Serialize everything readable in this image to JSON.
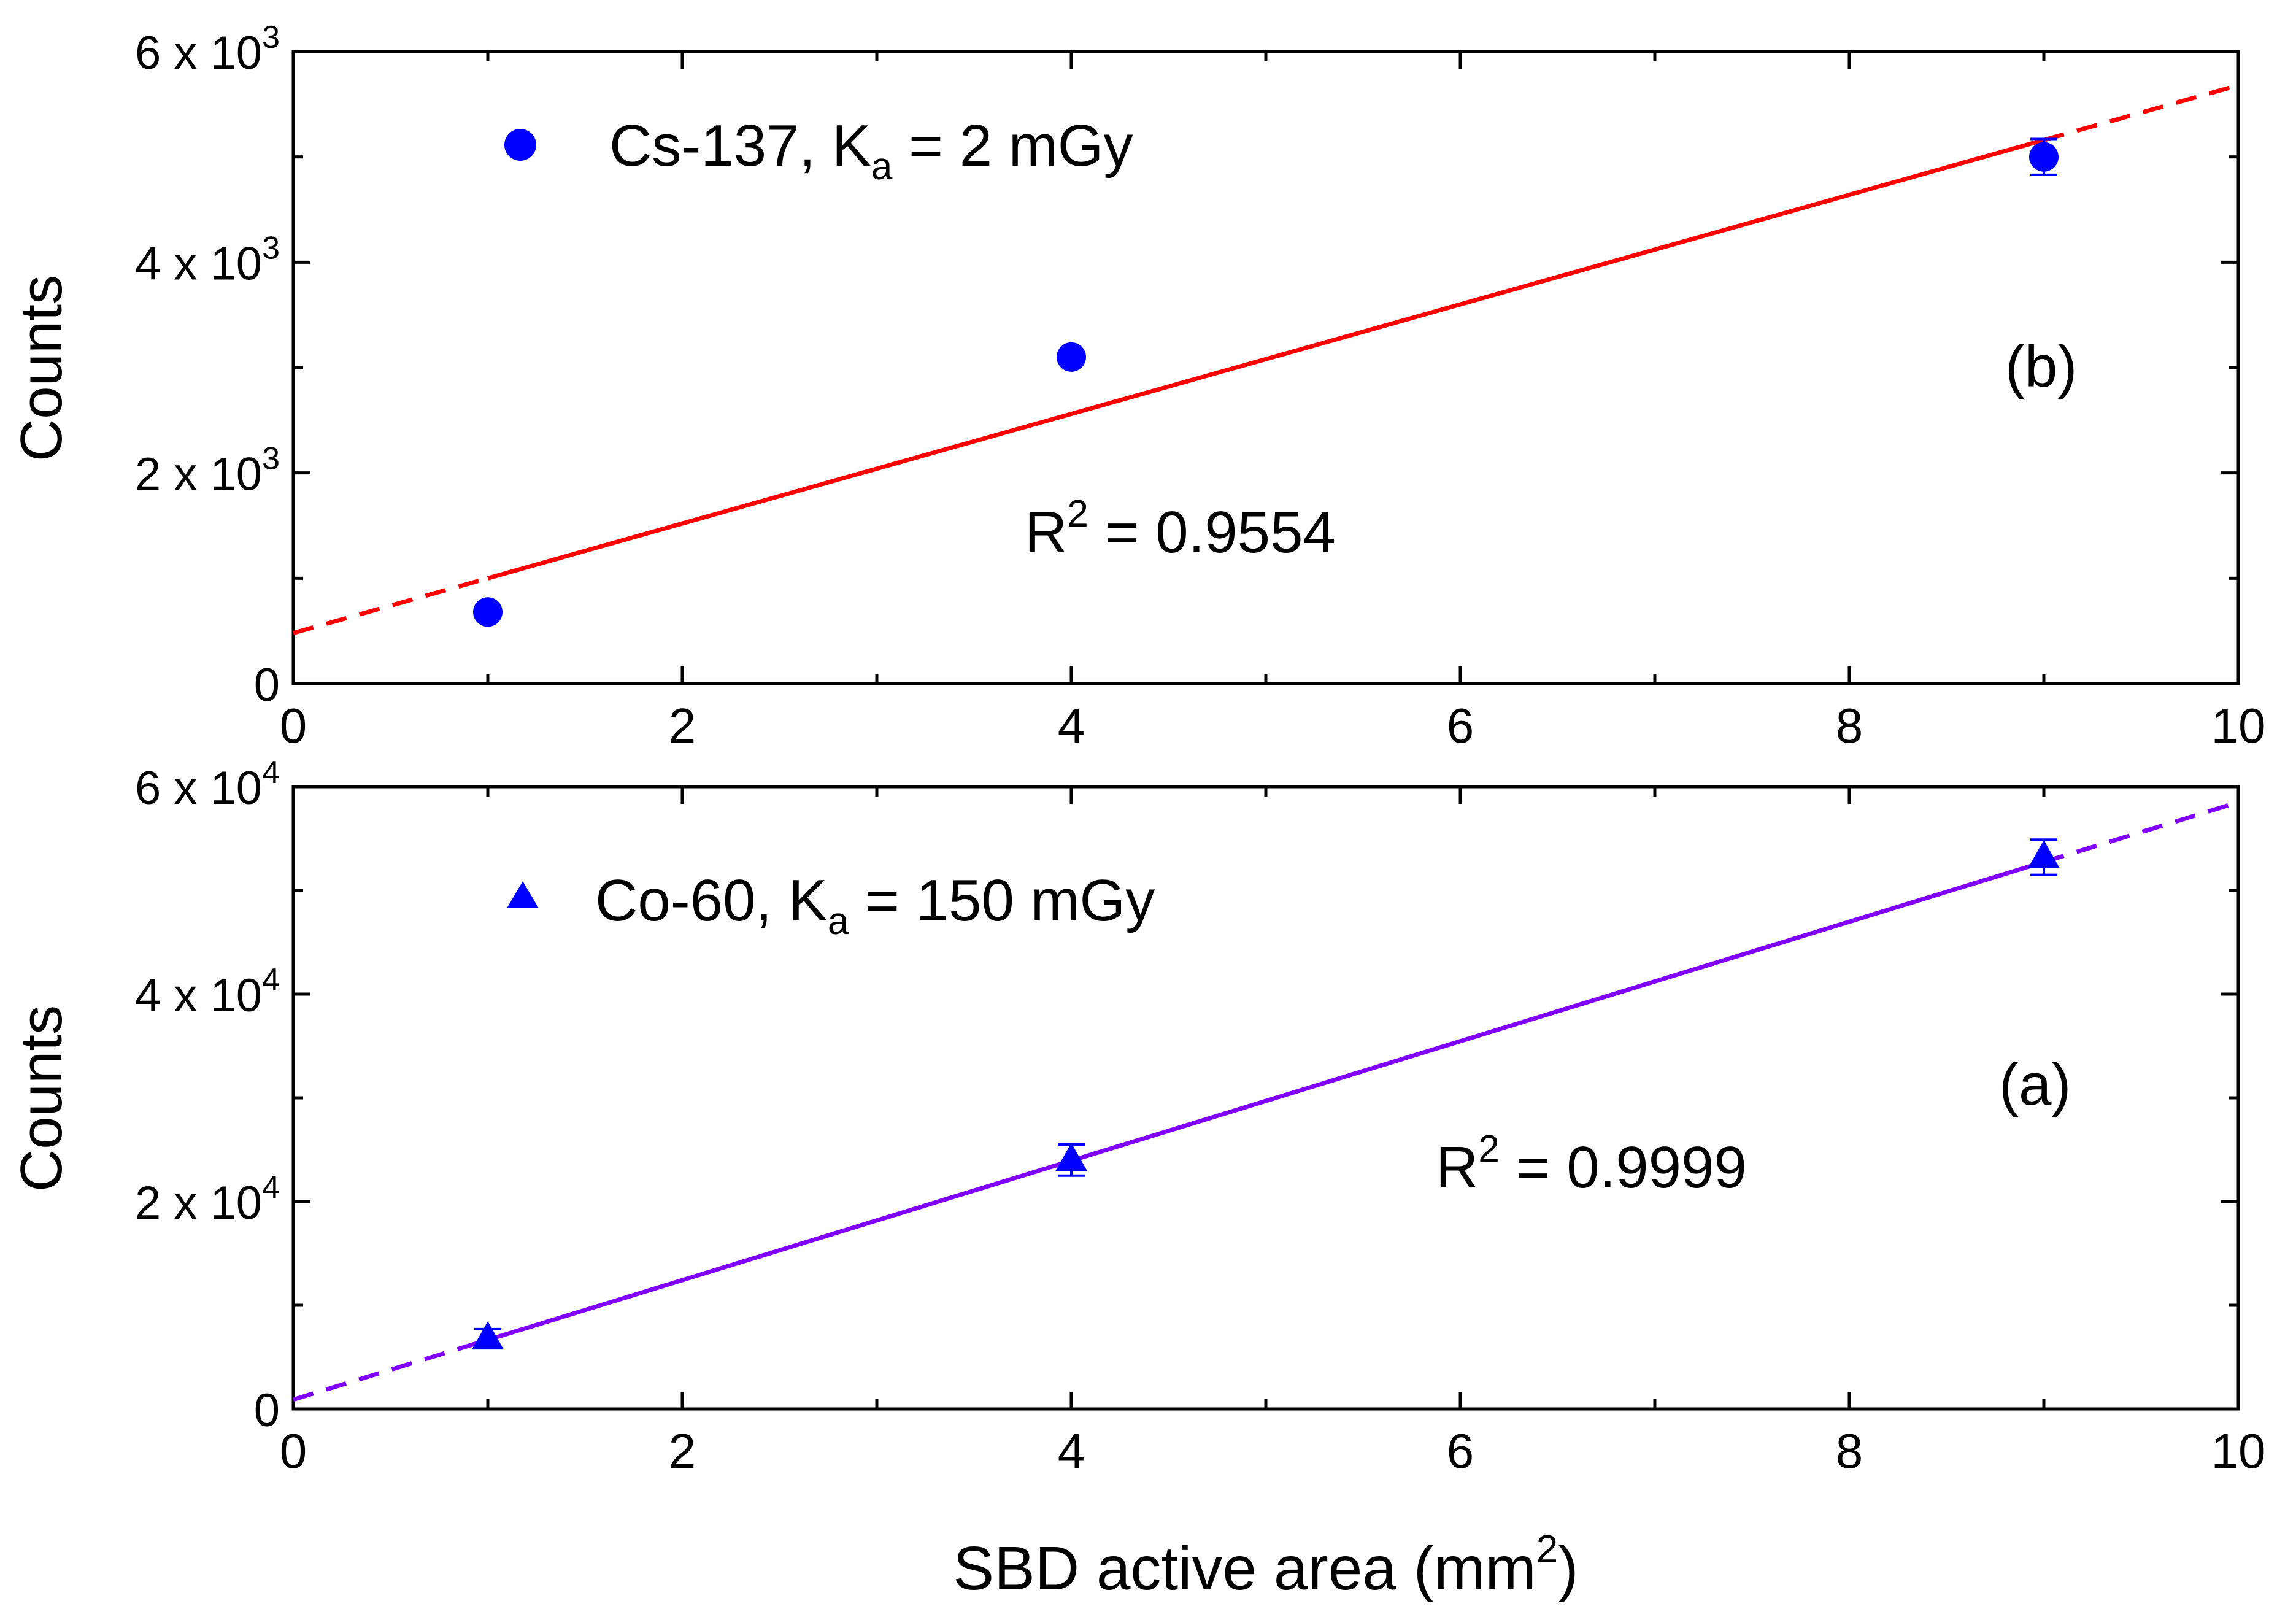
{
  "figure": {
    "xlabel": "SBD active area (mm",
    "xlabel_sup": "2",
    "xlabel_close": ")"
  },
  "chart_data": [
    {
      "type": "scatter",
      "panel_label": "(b)",
      "ylabel": "Counts",
      "xlim": [
        0,
        10
      ],
      "ylim": [
        0,
        6000
      ],
      "x_ticks": [
        0,
        2,
        4,
        6,
        8,
        10
      ],
      "x_tick_labels": [
        "0",
        "2",
        "4",
        "6",
        "8",
        "10"
      ],
      "y_ticks": [
        0,
        2000,
        4000,
        6000
      ],
      "y_tick_labels": [
        {
          "value": 0,
          "mant": "0",
          "exp": ""
        },
        {
          "value": 2000,
          "mant": "2 x 10",
          "exp": "3"
        },
        {
          "value": 4000,
          "mant": "4 x 10",
          "exp": "3"
        },
        {
          "value": 6000,
          "mant": "6 x 10",
          "exp": "3"
        }
      ],
      "y_minor_ticks": [
        1000,
        3000,
        5000
      ],
      "x_minor_ticks": [
        1,
        3,
        5,
        7,
        9
      ],
      "series": [
        {
          "name": "Cs-137",
          "legend_main": "Cs-137, K",
          "legend_sub": "a",
          "legend_tail": " = 2 mGy",
          "marker": "circle",
          "color": "#0000ff",
          "points": [
            {
              "x": 1,
              "y": 680,
              "err": 0
            },
            {
              "x": 4,
              "y": 3100,
              "err": 0
            },
            {
              "x": 9,
              "y": 5000,
              "err": 170
            }
          ]
        }
      ],
      "fit": {
        "color": "#ff0000",
        "intercept": 480,
        "slope": 520,
        "solid_range": [
          1,
          9
        ],
        "dashed_range": [
          0,
          10
        ],
        "r2_prefix": "R",
        "r2_sup": "2",
        "r2_value": " = 0.9554"
      }
    },
    {
      "type": "scatter",
      "panel_label": "(a)",
      "ylabel": "Counts",
      "xlim": [
        0,
        10
      ],
      "ylim": [
        0,
        60000
      ],
      "x_ticks": [
        0,
        2,
        4,
        6,
        8,
        10
      ],
      "x_tick_labels": [
        "0",
        "2",
        "4",
        "6",
        "8",
        "10"
      ],
      "y_ticks": [
        0,
        20000,
        40000,
        60000
      ],
      "y_tick_labels": [
        {
          "value": 0,
          "mant": "0",
          "exp": ""
        },
        {
          "value": 20000,
          "mant": "2 x 10",
          "exp": "4"
        },
        {
          "value": 40000,
          "mant": "4 x 10",
          "exp": "4"
        },
        {
          "value": 60000,
          "mant": "6 x 10",
          "exp": "4"
        }
      ],
      "y_minor_ticks": [
        10000,
        30000,
        50000
      ],
      "x_minor_ticks": [
        1,
        3,
        5,
        7,
        9
      ],
      "series": [
        {
          "name": "Co-60",
          "legend_main": "Co-60, K",
          "legend_sub": "a",
          "legend_tail": " = 150 mGy",
          "marker": "triangle",
          "color": "#0000ff",
          "points": [
            {
              "x": 1,
              "y": 6800,
              "err": 900
            },
            {
              "x": 4,
              "y": 24000,
              "err": 1500
            },
            {
              "x": 9,
              "y": 53200,
              "err": 1700
            }
          ]
        }
      ],
      "fit": {
        "color": "#8000ff",
        "intercept": 900,
        "slope": 5760,
        "solid_range": [
          1,
          9
        ],
        "dashed_range": [
          0,
          10
        ],
        "r2_prefix": "R",
        "r2_sup": "2",
        "r2_value": " = 0.9999"
      }
    }
  ]
}
